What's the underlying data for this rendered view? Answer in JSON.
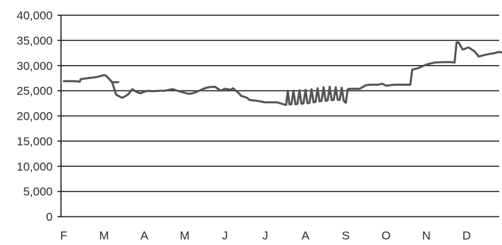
{
  "chart_data": {
    "type": "line",
    "title": "",
    "xlabel": "",
    "ylabel": "",
    "ylim": [
      0,
      40000
    ],
    "y_ticks": [
      0,
      5000,
      10000,
      15000,
      20000,
      25000,
      30000,
      35000,
      40000
    ],
    "y_tick_labels": [
      "0",
      "5,000",
      "10,000",
      "15,000",
      "20,000",
      "25,000",
      "30,000",
      "35,000",
      "40,000"
    ],
    "x_ticks": [
      "F",
      "M",
      "A",
      "M",
      "J",
      "J",
      "A",
      "S",
      "O",
      "N",
      "D"
    ],
    "xlim": [
      0,
      11.2
    ],
    "grid": true,
    "legend": "none",
    "colors": {
      "line": "#555555",
      "grid": "#1a1a1a",
      "text": "#2b2b2b"
    },
    "series": [
      {
        "x": [
          0.0,
          0.25,
          0.4,
          0.42,
          0.6,
          0.8,
          0.95,
          1.0,
          1.05,
          1.2,
          1.35,
          1.2,
          1.22,
          1.3,
          1.45,
          1.5,
          1.6,
          1.7,
          1.8,
          1.9,
          2.0,
          2.1,
          2.2,
          2.4,
          2.5,
          2.7,
          2.9,
          3.05,
          3.1,
          3.2,
          3.3,
          3.5,
          3.6,
          3.75,
          3.9,
          4.0,
          4.15,
          4.2,
          4.35,
          4.4,
          4.55,
          4.6,
          4.8,
          5.0,
          5.2,
          5.3,
          5.5,
          5.52,
          5.56,
          5.6,
          5.65,
          5.7,
          5.75,
          5.8,
          5.85,
          5.9,
          5.95,
          6.0,
          6.05,
          6.1,
          6.15,
          6.2,
          6.25,
          6.3,
          6.35,
          6.4,
          6.45,
          6.5,
          6.55,
          6.6,
          6.65,
          6.7,
          6.75,
          6.8,
          6.85,
          6.9,
          6.95,
          7.0,
          7.05,
          7.1,
          7.2,
          7.35,
          7.5,
          7.6,
          7.8,
          7.9,
          8.0,
          8.1,
          8.2,
          8.4,
          8.6,
          8.65,
          8.8,
          9.0,
          9.2,
          9.4,
          9.6,
          9.7,
          9.75,
          9.8,
          9.9,
          9.95,
          10.0,
          10.05,
          10.2,
          10.3,
          10.4,
          10.5,
          10.7,
          10.8,
          10.9,
          11.0,
          11.1,
          11.2
        ],
        "values": [
          26900,
          26900,
          26800,
          27300,
          27500,
          27700,
          28000,
          28100,
          28000,
          26700,
          26700,
          26700,
          26200,
          24200,
          23600,
          23800,
          24300,
          25300,
          24800,
          24500,
          24800,
          25000,
          24900,
          25000,
          25000,
          25300,
          24800,
          24500,
          24400,
          24500,
          24800,
          25500,
          25700,
          25800,
          25000,
          25400,
          25200,
          25500,
          24500,
          24000,
          23600,
          23200,
          23000,
          22700,
          22700,
          22700,
          22200,
          22200,
          25000,
          22300,
          22300,
          25000,
          22300,
          22400,
          25100,
          22400,
          22500,
          25200,
          22500,
          22600,
          25300,
          22700,
          22800,
          25500,
          22900,
          23000,
          25700,
          23000,
          23100,
          25800,
          23100,
          23200,
          25700,
          23200,
          23200,
          25600,
          23000,
          22600,
          25300,
          25400,
          25400,
          25400,
          26100,
          26200,
          26200,
          26400,
          26000,
          26100,
          26200,
          26200,
          26200,
          29200,
          29500,
          30200,
          30600,
          30700,
          30700,
          30600,
          34600,
          34600,
          33200,
          33300,
          33500,
          33600,
          32800,
          31800,
          32000,
          32200,
          32500,
          32700,
          32600,
          32800,
          32300,
          31000
        ]
      }
    ]
  }
}
